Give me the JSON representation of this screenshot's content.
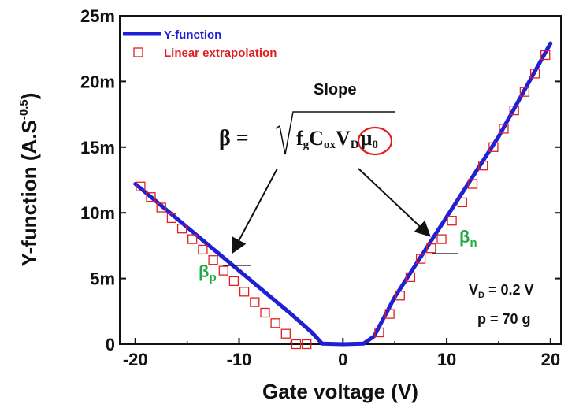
{
  "chart_data": {
    "type": "line",
    "xlabel": "Gate voltage (V)",
    "ylabel_main": "Y-function (A.S",
    "ylabel_sup": "-0.5",
    "ylabel_close": ")",
    "xlim": [
      -21.5,
      21
    ],
    "ylim": [
      0,
      25
    ],
    "x_ticks": [
      -20,
      -10,
      0,
      10,
      20
    ],
    "x_tick_labels": [
      "-20",
      "-10",
      "0",
      "10",
      "20"
    ],
    "y_ticks": [
      0,
      5,
      10,
      15,
      20,
      25
    ],
    "y_tick_labels": [
      "0",
      "5m",
      "10m",
      "15m",
      "20m",
      "25m"
    ],
    "series": [
      {
        "name": "Y-function",
        "style": "line",
        "color": "#1f1fd6",
        "x": [
          -20,
          -15,
          -10,
          -5,
          -3,
          -2,
          0,
          2,
          3,
          5,
          10,
          15,
          20
        ],
        "y": [
          12.2,
          8.9,
          5.6,
          2.3,
          0.9,
          0.05,
          0,
          0.05,
          0.6,
          3.6,
          9.7,
          15.8,
          22.9
        ]
      },
      {
        "name": "Linear extrapolation",
        "style": "markers",
        "color": "#e02020",
        "x": [
          -19.5,
          -18.5,
          -17.5,
          -16.5,
          -15.5,
          -14.5,
          -13.5,
          -12.5,
          -11.5,
          -10.5,
          -9.5,
          -8.5,
          -7.5,
          -6.5,
          -5.5,
          -4.5,
          -3.5,
          3.5,
          4.5,
          5.5,
          6.5,
          7.5,
          8.5,
          9.5,
          10.5,
          11.5,
          12.5,
          13.5,
          14.5,
          15.5,
          16.5,
          17.5,
          18.5,
          19.5
        ],
        "y": [
          12.0,
          11.2,
          10.4,
          9.6,
          8.8,
          8.0,
          7.2,
          6.4,
          5.6,
          4.8,
          4.0,
          3.2,
          2.4,
          1.6,
          0.8,
          0.0,
          0.0,
          0.9,
          2.3,
          3.7,
          5.1,
          6.5,
          7.3,
          8.0,
          9.4,
          10.8,
          12.2,
          13.6,
          15.0,
          16.4,
          17.8,
          19.2,
          20.6,
          22.0
        ]
      }
    ],
    "legend_position": "top-left",
    "annotations": {
      "slope_label": "Slope",
      "beta_p": "β",
      "beta_p_sub": "p",
      "beta_n": "β",
      "beta_n_sub": "n",
      "vd_main": "V",
      "vd_sub": "D",
      "vd_rest": " = 0.2 V",
      "p_label": "p = 70 g",
      "formula_lhs": "β =",
      "formula_f": "f",
      "formula_f_sub": "g",
      "formula_c": "C",
      "formula_c_sub": "ox",
      "formula_v": "V",
      "formula_v_sub": "D",
      "formula_mu": "μ",
      "formula_mu_sub": "0"
    },
    "colors": {
      "line": "#1f1fd6",
      "marker": "#e02020",
      "beta": "#22aa44",
      "circle": "#e02020"
    }
  }
}
